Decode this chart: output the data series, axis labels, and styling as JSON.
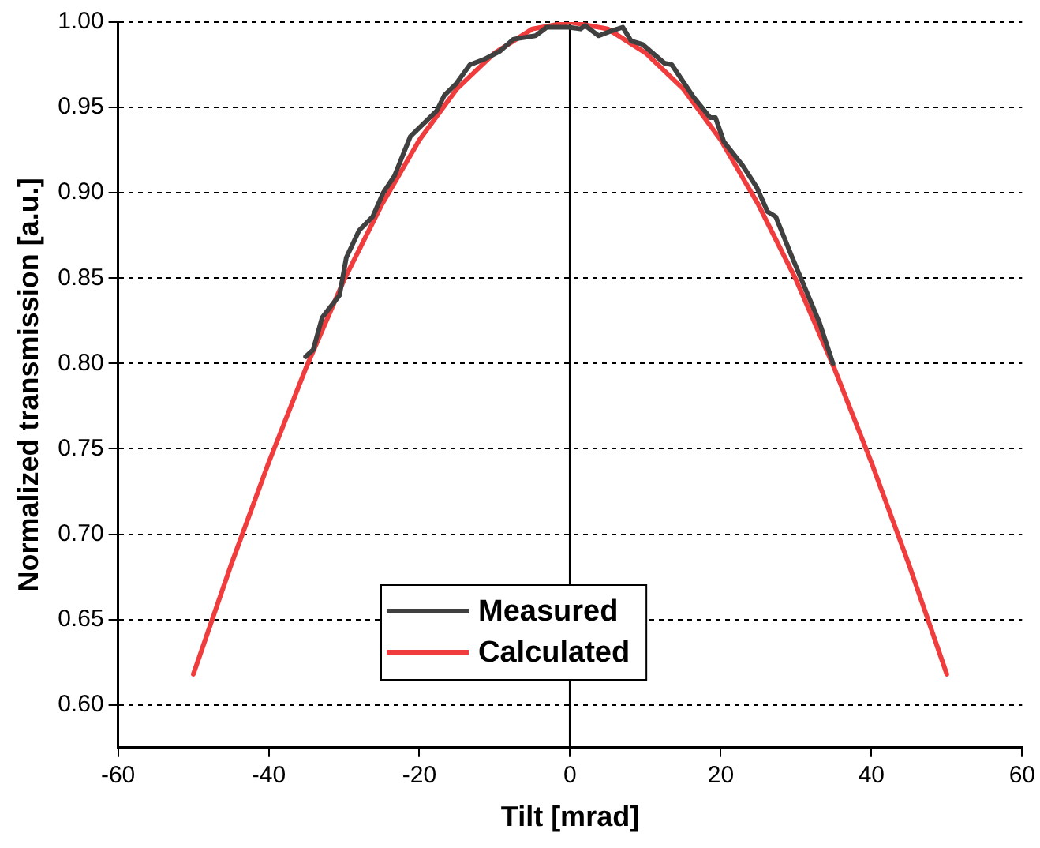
{
  "chart_data": {
    "type": "line",
    "xlabel": "Tilt [mrad]",
    "ylabel": "Normalized transmission [a.u.]",
    "xlim": [
      -60,
      60
    ],
    "xticks": [
      -60,
      -40,
      -20,
      0,
      20,
      40,
      60
    ],
    "ylim": [
      0.575,
      1.0
    ],
    "yticks": [
      {
        "value": 0.6,
        "label": "0.60"
      },
      {
        "value": 0.65,
        "label": "0.65"
      },
      {
        "value": 0.7,
        "label": "0.70"
      },
      {
        "value": 0.75,
        "label": "0.75"
      },
      {
        "value": 0.8,
        "label": "0.80"
      },
      {
        "value": 0.85,
        "label": "0.85"
      },
      {
        "value": 0.9,
        "label": "0.90"
      },
      {
        "value": 0.95,
        "label": "0.95"
      },
      {
        "value": 1.0,
        "label": "1.00"
      }
    ],
    "grid": "y",
    "legend": "bottom",
    "marker": "none",
    "line_style": "solid",
    "ref_lines": [
      {
        "axis": "x",
        "value": 0,
        "color": "#000000"
      }
    ],
    "series": [
      {
        "name": "Measured",
        "color": "#404040",
        "x": [
          -35.1,
          -34.1,
          -32.9,
          -30.6,
          -29.7,
          -28.0,
          -26.2,
          -24.8,
          -23.3,
          -21.2,
          -17.7,
          -16.7,
          -15.1,
          -13.3,
          -11.5,
          -9.3,
          -7.5,
          -4.6,
          -3.1,
          -0.2,
          1.4,
          2.0,
          3.8,
          5.6,
          7.0,
          8.1,
          9.6,
          12.5,
          13.5,
          16.4,
          18.6,
          19.3,
          20.4,
          22.9,
          24.8,
          26.2,
          27.3,
          29.5,
          31.3,
          33.1,
          34.9
        ],
        "values": [
          0.804,
          0.808,
          0.827,
          0.84,
          0.862,
          0.878,
          0.886,
          0.9,
          0.91,
          0.933,
          0.948,
          0.957,
          0.964,
          0.975,
          0.978,
          0.983,
          0.99,
          0.992,
          0.997,
          0.997,
          0.996,
          0.998,
          0.992,
          0.995,
          0.997,
          0.989,
          0.987,
          0.976,
          0.975,
          0.956,
          0.944,
          0.944,
          0.93,
          0.916,
          0.903,
          0.889,
          0.886,
          0.862,
          0.843,
          0.824,
          0.8
        ]
      },
      {
        "name": "Calculated",
        "color": "#f03c3c",
        "x": [
          -50,
          -45,
          -40,
          -35,
          -30,
          -25,
          -20,
          -15,
          -10,
          -5,
          0,
          5,
          10,
          15,
          20,
          25,
          30,
          35,
          40,
          45,
          50
        ],
        "values": [
          0.618,
          0.682,
          0.742,
          0.798,
          0.849,
          0.893,
          0.931,
          0.961,
          0.982,
          0.996,
          1.0,
          0.996,
          0.982,
          0.961,
          0.931,
          0.893,
          0.849,
          0.798,
          0.742,
          0.682,
          0.618
        ]
      }
    ]
  }
}
